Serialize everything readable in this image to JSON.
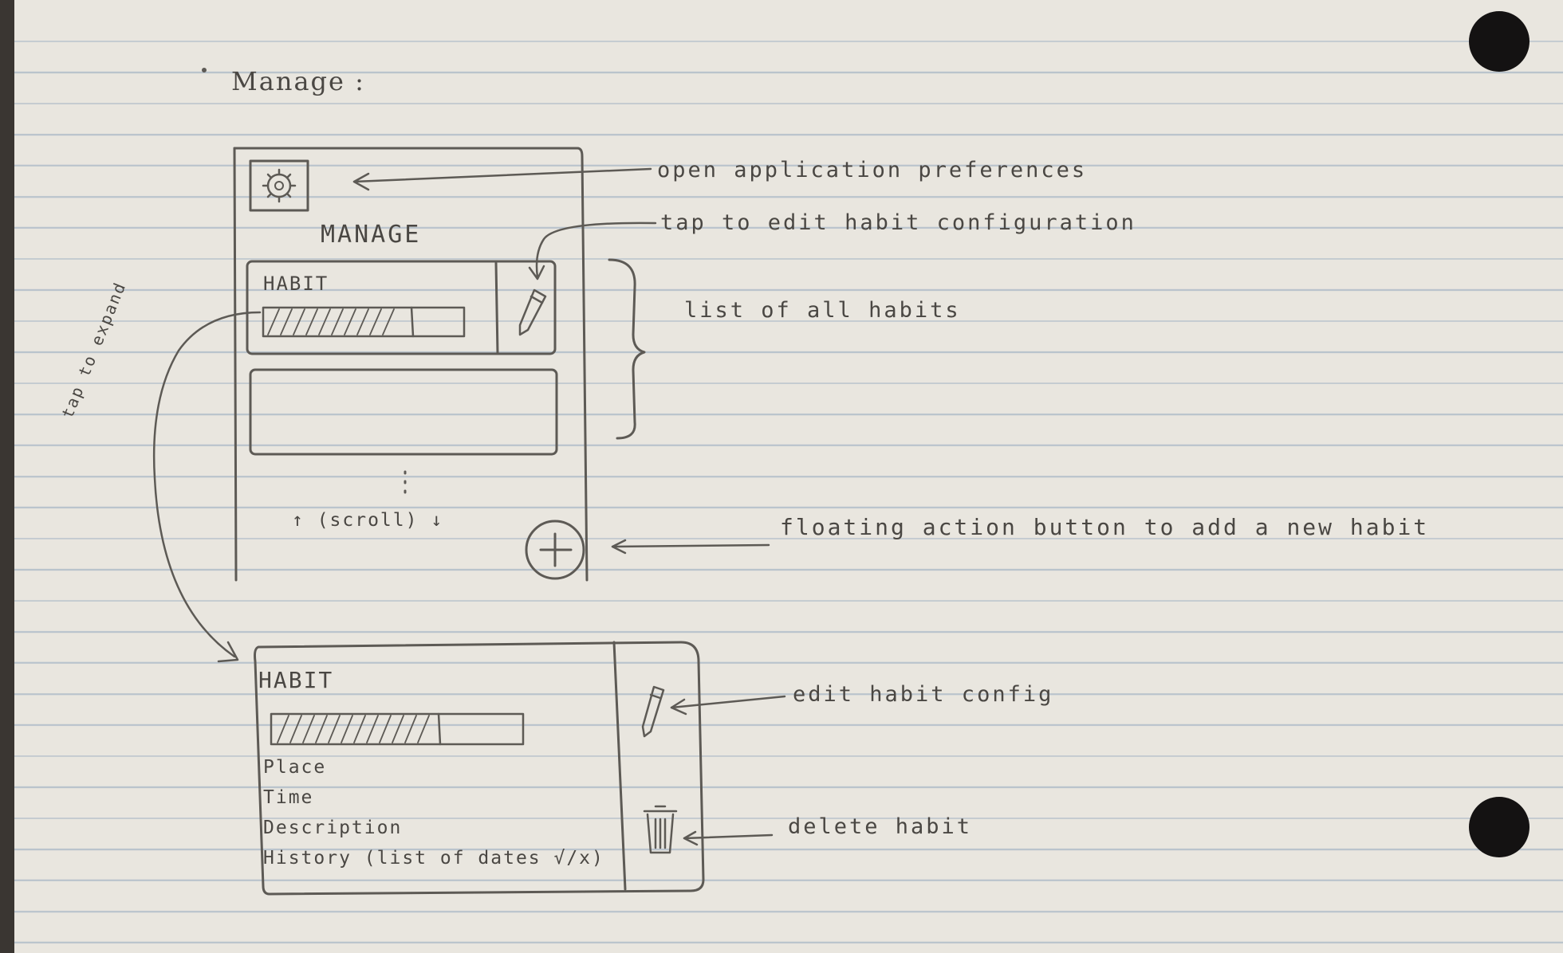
{
  "heading": "Manage :",
  "screen": {
    "title": "MANAGE",
    "card_title": "HABIT",
    "scroll_hint": "↑ (scroll) ↓",
    "fab_symbol": "+"
  },
  "expanded_card": {
    "title": "HABIT",
    "fields": [
      "Place",
      "Time",
      "Description",
      "History (list of dates √/x)"
    ]
  },
  "side_note": "tap to expand",
  "annotations": {
    "preferences": "open application preferences",
    "edit": "tap to edit habit configuration",
    "list": "list of all habits",
    "fab": "floating action button to add a new habit",
    "edit_config": "edit habit config",
    "delete": "delete habit"
  }
}
